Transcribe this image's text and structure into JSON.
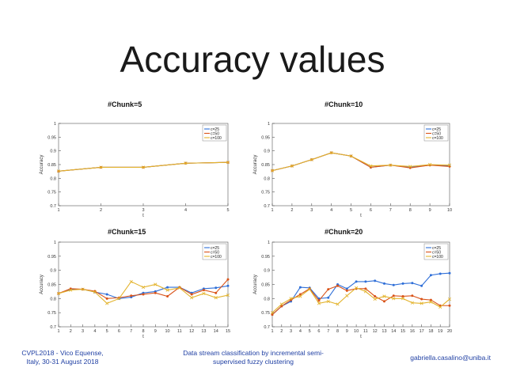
{
  "slide": {
    "title": "Accuracy values",
    "footer_left_1": "CVPL2018 - Vico Equense,",
    "footer_left_2": "Italy, 30-31 August 2018",
    "footer_center_1": "Data stream classification by incremental semi-",
    "footer_center_2": "supervised fuzzy clustering",
    "footer_right": "gabriella.casalino@uniba.it"
  },
  "colors": {
    "c25": "#2f6fd8",
    "c50": "#d95319",
    "c100": "#e3b32c",
    "footer": "#1f3fa3"
  },
  "chart_data": [
    {
      "type": "line",
      "title": "#Chunk=5",
      "xlabel": "t",
      "ylabel": "Accuracy",
      "xlim": [
        1,
        5
      ],
      "ylim": [
        0.7,
        1
      ],
      "xticks": [
        1,
        2,
        3,
        4,
        5
      ],
      "yticks": [
        0.7,
        0.75,
        0.8,
        0.85,
        0.9,
        0.95,
        1
      ],
      "legend": "top-right",
      "x": [
        1,
        2,
        3,
        4,
        5
      ],
      "series": [
        {
          "name": "c=25",
          "values": [
            0.826,
            0.84,
            0.84,
            0.855,
            0.858
          ]
        },
        {
          "name": "c=50",
          "values": [
            0.826,
            0.84,
            0.84,
            0.855,
            0.858
          ]
        },
        {
          "name": "c=100",
          "values": [
            0.826,
            0.84,
            0.84,
            0.855,
            0.858
          ]
        }
      ]
    },
    {
      "type": "line",
      "title": "#Chunk=10",
      "xlabel": "t",
      "ylabel": "Accuracy",
      "xlim": [
        1,
        10
      ],
      "ylim": [
        0.7,
        1
      ],
      "xticks": [
        1,
        2,
        3,
        4,
        5,
        6,
        7,
        8,
        9,
        10
      ],
      "yticks": [
        0.7,
        0.75,
        0.8,
        0.85,
        0.9,
        0.95,
        1
      ],
      "legend": "top-right",
      "x": [
        1,
        2,
        3,
        4,
        5,
        6,
        7,
        8,
        9,
        10
      ],
      "series": [
        {
          "name": "c=25",
          "values": [
            0.828,
            0.845,
            0.868,
            0.893,
            0.881,
            0.84,
            0.848,
            0.84,
            0.848,
            0.845
          ]
        },
        {
          "name": "c=50",
          "values": [
            0.828,
            0.845,
            0.868,
            0.893,
            0.881,
            0.84,
            0.848,
            0.838,
            0.848,
            0.843
          ]
        },
        {
          "name": "c=100",
          "values": [
            0.828,
            0.845,
            0.868,
            0.893,
            0.881,
            0.845,
            0.848,
            0.843,
            0.85,
            0.848
          ]
        }
      ]
    },
    {
      "type": "line",
      "title": "#Chunk=15",
      "xlabel": "t",
      "ylabel": "Accuracy",
      "xlim": [
        1,
        15
      ],
      "ylim": [
        0.7,
        1
      ],
      "xticks": [
        1,
        2,
        3,
        4,
        5,
        6,
        7,
        8,
        9,
        10,
        11,
        12,
        13,
        14,
        15
      ],
      "yticks": [
        0.7,
        0.75,
        0.8,
        0.85,
        0.9,
        0.95,
        1
      ],
      "legend": "top-right",
      "x": [
        1,
        2,
        3,
        4,
        5,
        6,
        7,
        8,
        9,
        10,
        11,
        12,
        13,
        14,
        15
      ],
      "series": [
        {
          "name": "c=25",
          "values": [
            0.818,
            0.833,
            0.833,
            0.823,
            0.815,
            0.8,
            0.805,
            0.82,
            0.825,
            0.84,
            0.84,
            0.82,
            0.835,
            0.838,
            0.845
          ]
        },
        {
          "name": "c=50",
          "values": [
            0.818,
            0.835,
            0.833,
            0.826,
            0.8,
            0.803,
            0.81,
            0.815,
            0.82,
            0.808,
            0.84,
            0.815,
            0.83,
            0.82,
            0.868
          ]
        },
        {
          "name": "c=100",
          "values": [
            0.818,
            0.83,
            0.833,
            0.823,
            0.783,
            0.8,
            0.86,
            0.84,
            0.85,
            0.83,
            0.838,
            0.803,
            0.818,
            0.803,
            0.812
          ]
        }
      ]
    },
    {
      "type": "line",
      "title": "#Chunk=20",
      "xlabel": "t",
      "ylabel": "Accuracy",
      "xlim": [
        1,
        20
      ],
      "ylim": [
        0.7,
        1
      ],
      "xticks": [
        1,
        2,
        3,
        4,
        5,
        6,
        7,
        8,
        9,
        10,
        11,
        12,
        13,
        14,
        15,
        16,
        17,
        18,
        19,
        20
      ],
      "yticks": [
        0.7,
        0.75,
        0.8,
        0.85,
        0.9,
        0.95,
        1
      ],
      "legend": "top-right",
      "x": [
        1,
        2,
        3,
        4,
        5,
        6,
        7,
        8,
        9,
        10,
        11,
        12,
        13,
        14,
        15,
        16,
        17,
        18,
        19,
        20
      ],
      "series": [
        {
          "name": "c=25",
          "values": [
            0.743,
            0.773,
            0.79,
            0.84,
            0.838,
            0.8,
            0.803,
            0.85,
            0.835,
            0.86,
            0.86,
            0.863,
            0.853,
            0.848,
            0.853,
            0.855,
            0.845,
            0.883,
            0.888,
            0.89
          ]
        },
        {
          "name": "c=50",
          "values": [
            0.743,
            0.773,
            0.795,
            0.815,
            0.835,
            0.793,
            0.833,
            0.845,
            0.828,
            0.835,
            0.835,
            0.808,
            0.79,
            0.81,
            0.808,
            0.81,
            0.798,
            0.795,
            0.775,
            0.775
          ]
        },
        {
          "name": "c=100",
          "values": [
            0.75,
            0.78,
            0.8,
            0.808,
            0.833,
            0.783,
            0.79,
            0.78,
            0.81,
            0.838,
            0.825,
            0.798,
            0.808,
            0.8,
            0.8,
            0.785,
            0.783,
            0.788,
            0.77,
            0.798
          ]
        }
      ]
    }
  ]
}
